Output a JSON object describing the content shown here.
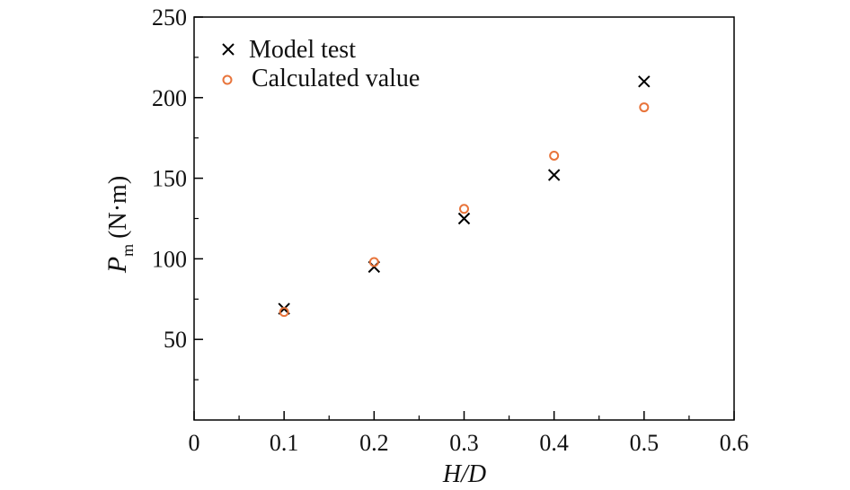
{
  "chart_data": {
    "type": "scatter",
    "title": "",
    "xlabel": "H/D",
    "ylabel": {
      "main": "P",
      "subscript": "m",
      "unit": "(N·m)"
    },
    "xlim": [
      0,
      0.6
    ],
    "ylim": [
      0,
      250
    ],
    "xticks": [
      0,
      0.1,
      0.2,
      0.3,
      0.4,
      0.5,
      0.6
    ],
    "xtick_labels": [
      "0",
      "0.1",
      "0.2",
      "0.3",
      "0.4",
      "0.5",
      "0.6"
    ],
    "yticks": [
      50,
      100,
      150,
      200,
      250
    ],
    "ytick_labels": [
      "50",
      "100",
      "150",
      "200",
      "250"
    ],
    "grid": false,
    "legend_position": "top-left",
    "series": [
      {
        "name": "Model test",
        "marker": "x",
        "color": "#000000",
        "x": [
          0.1,
          0.2,
          0.3,
          0.4,
          0.5
        ],
        "y": [
          69,
          95,
          125,
          152,
          210
        ]
      },
      {
        "name": "Calculated value",
        "marker": "circle",
        "color": "#E8743B",
        "x": [
          0.1,
          0.2,
          0.3,
          0.4,
          0.5
        ],
        "y": [
          67,
          98,
          131,
          164,
          194
        ]
      }
    ]
  }
}
